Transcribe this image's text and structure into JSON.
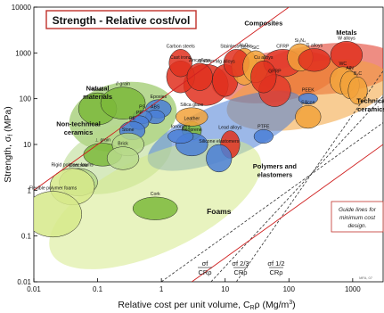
{
  "chart_data": {
    "type": "scatter",
    "title": "Strength - Relative cost/vol",
    "xlabel": "Relative cost per unit volume, C",
    "xlabel_sub": "R",
    "xlabel_rho": "ρ",
    "xlabel_units": "(Mg/m",
    "xlabel_units_sup": "3",
    "xlabel_close": ")",
    "ylabel": "Strength, σ",
    "ylabel_sub": "f",
    "ylabel_units": " (MPa)",
    "xscale": "log",
    "yscale": "log",
    "xlim": [
      0.01,
      3000
    ],
    "ylim": [
      0.01,
      10000
    ],
    "x_ticks": [
      0.01,
      0.1,
      1,
      10,
      100,
      1000
    ],
    "x_tick_labels": [
      "0.01",
      "0.1",
      "1",
      "10",
      "100",
      "1000"
    ],
    "y_ticks": [
      0.01,
      0.1,
      1,
      10,
      100,
      1000,
      10000
    ],
    "y_tick_labels": [
      "0.01",
      "0.1",
      "1",
      "10",
      "100",
      "1000",
      "10000"
    ],
    "grid": false,
    "families": [
      {
        "name": "Composites",
        "color": "#e33b2c",
        "cx": 60,
        "cy": 300,
        "rx_dec": 1.0,
        "ry_dec": 0.55,
        "rot": -8
      },
      {
        "name": "Metals",
        "color": "#e0301e",
        "cx": 400,
        "cy": 450,
        "rx_dec": 1.15,
        "ry_dec": 0.55,
        "rot": -5
      },
      {
        "name": "Natural materials",
        "color": "#7bb83a",
        "cx": 0.25,
        "cy": 40,
        "rx_dec": 0.85,
        "ry_dec": 0.75,
        "rot": -10
      },
      {
        "name": "Non-technical ceramics",
        "color": "#b7d98a",
        "cx": 0.2,
        "cy": 5,
        "rx_dec": 0.9,
        "ry_dec": 0.7,
        "rot": -20
      },
      {
        "name": "Technical ceramics",
        "color": "#f2a23b",
        "cx": 200,
        "cy": 120,
        "rx_dec": 1.3,
        "ry_dec": 0.7,
        "rot": -12
      },
      {
        "name": "Polymers and elastomers",
        "color": "#4a7ed6",
        "cx": 10,
        "cy": 20,
        "rx_dec": 1.3,
        "ry_dec": 0.6,
        "rot": -22
      },
      {
        "name": "Foams",
        "color": "#d6e98a",
        "cx": 0.8,
        "cy": 0.5,
        "rx_dec": 1.8,
        "ry_dec": 1.05,
        "rot": -25
      }
    ],
    "materials": [
      {
        "name": "Al alloys",
        "x": 5,
        "y": 200,
        "rx": 0.35,
        "ry": 0.45,
        "color": "#e0301e"
      },
      {
        "name": "Cast irons",
        "x": 2,
        "y": 300,
        "rx": 0.22,
        "ry": 0.35,
        "color": "#e0301e"
      },
      {
        "name": "Carbon steels",
        "x": 2,
        "y": 600,
        "rx": 0.18,
        "ry": 0.3,
        "color": "#e0301e"
      },
      {
        "name": "Zinc alloys",
        "x": 4,
        "y": 300,
        "rx": 0.2,
        "ry": 0.3,
        "color": "#e0301e"
      },
      {
        "name": "Mg alloys",
        "x": 10,
        "y": 250,
        "rx": 0.2,
        "ry": 0.35,
        "color": "#e0301e"
      },
      {
        "name": "Al₂O₃",
        "x": 20,
        "y": 500,
        "rx": 0.2,
        "ry": 0.4,
        "color": "#f2a23b"
      },
      {
        "name": "Stainless steels",
        "x": 15,
        "y": 600,
        "rx": 0.2,
        "ry": 0.3,
        "color": "#e0301e"
      },
      {
        "name": "SiC",
        "x": 30,
        "y": 500,
        "rx": 0.2,
        "ry": 0.35,
        "color": "#f2a23b"
      },
      {
        "name": "CFRP",
        "x": 80,
        "y": 600,
        "rx": 0.3,
        "ry": 0.3,
        "color": "#e33b2c"
      },
      {
        "name": "Si₃N₄",
        "x": 150,
        "y": 800,
        "rx": 0.2,
        "ry": 0.3,
        "color": "#f2a23b"
      },
      {
        "name": "Ti alloys",
        "x": 250,
        "y": 700,
        "rx": 0.25,
        "ry": 0.25,
        "color": "#e0301e"
      },
      {
        "name": "W alloys",
        "x": 800,
        "y": 900,
        "rx": 0.25,
        "ry": 0.3,
        "color": "#e0301e"
      },
      {
        "name": "WC",
        "x": 700,
        "y": 250,
        "rx": 0.2,
        "ry": 0.3,
        "color": "#f2a23b"
      },
      {
        "name": "AlN",
        "x": 900,
        "y": 200,
        "rx": 0.15,
        "ry": 0.3,
        "color": "#f2a23b"
      },
      {
        "name": "B₄C",
        "x": 1200,
        "y": 150,
        "rx": 0.15,
        "ry": 0.3,
        "color": "#f2a23b"
      },
      {
        "name": "PEEK",
        "x": 200,
        "y": 100,
        "rx": 0.15,
        "ry": 0.12,
        "color": "#4a7ed6"
      },
      {
        "name": "GFRP",
        "x": 60,
        "y": 150,
        "rx": 0.25,
        "ry": 0.35,
        "color": "#e33b2c"
      },
      {
        "name": "Silicon",
        "x": 200,
        "y": 40,
        "rx": 0.2,
        "ry": 0.25,
        "color": "#f2a23b"
      },
      {
        "name": "Cu alloys",
        "x": 40,
        "y": 300,
        "rx": 0.2,
        "ry": 0.35,
        "color": "#e0301e"
      },
      {
        "name": "Lead alloys",
        "x": 12,
        "y": 10,
        "rx": 0.15,
        "ry": 0.3,
        "color": "#e0301e"
      },
      {
        "name": "PTFE",
        "x": 40,
        "y": 15,
        "rx": 0.15,
        "ry": 0.15,
        "color": "#4a7ed6"
      },
      {
        "name": "Leather",
        "x": 3,
        "y": 20,
        "rx": 0.15,
        "ry": 0.2,
        "color": "#7bb83a"
      },
      {
        "name": "Silicone elastomers",
        "x": 8,
        "y": 5,
        "rx": 0.2,
        "ry": 0.3,
        "color": "#4a7ed6"
      },
      {
        "name": "Neoprene",
        "x": 3,
        "y": 10,
        "rx": 0.25,
        "ry": 0.25,
        "color": "#4a7ed6"
      },
      {
        "name": "Epoxies",
        "x": 0.9,
        "y": 60,
        "rx": 0.2,
        "ry": 0.2,
        "color": "#4a7ed6"
      },
      {
        "name": "ABS",
        "x": 0.8,
        "y": 40,
        "rx": 0.15,
        "ry": 0.15,
        "color": "#4a7ed6"
      },
      {
        "name": "PS",
        "x": 0.5,
        "y": 40,
        "rx": 0.15,
        "ry": 0.15,
        "color": "#4a7ed6"
      },
      {
        "name": "PP",
        "x": 0.45,
        "y": 30,
        "rx": 0.15,
        "ry": 0.15,
        "color": "#4a7ed6"
      },
      {
        "name": "PE",
        "x": 0.35,
        "y": 20,
        "rx": 0.2,
        "ry": 0.2,
        "color": "#4a7ed6"
      },
      {
        "name": "Silica glass",
        "x": 3,
        "y": 40,
        "rx": 0.25,
        "ry": 0.2,
        "color": "#f2a23b"
      },
      {
        "name": "Ionomers",
        "x": 2,
        "y": 15,
        "rx": 0.2,
        "ry": 0.15,
        "color": "#4a7ed6"
      },
      {
        "name": "Wood",
        "x": 0.1,
        "y": 60,
        "rx": 0.3,
        "ry": 0.35,
        "color": "#7bb83a"
      },
      {
        "name": "// grain",
        "x": 0.25,
        "y": 80,
        "rx": 0.35,
        "ry": 0.35,
        "color": "#7bb83a"
      },
      {
        "name": "⊥ grain",
        "x": 0.12,
        "y": 6,
        "rx": 0.3,
        "ry": 0.25,
        "color": "#7bb83a"
      },
      {
        "name": "Stone",
        "x": 0.3,
        "y": 10,
        "rx": 0.25,
        "ry": 0.25,
        "color": "#b7d98a"
      },
      {
        "name": "Brick",
        "x": 0.25,
        "y": 5,
        "rx": 0.25,
        "ry": 0.25,
        "color": "#b7d98a"
      },
      {
        "name": "Concrete",
        "x": 0.05,
        "y": 1.5,
        "rx": 0.3,
        "ry": 0.3,
        "color": "#b7d98a"
      },
      {
        "name": "Rigid polymer foams",
        "x": 0.04,
        "y": 1.2,
        "rx": 0.35,
        "ry": 0.4,
        "color": "#d6e98a"
      },
      {
        "name": "Flexible polymer foams",
        "x": 0.02,
        "y": 0.3,
        "rx": 0.45,
        "ry": 0.5,
        "color": "#d6e98a"
      },
      {
        "name": "Cork",
        "x": 0.8,
        "y": 0.4,
        "rx": 0.35,
        "ry": 0.25,
        "color": "#7bb83a"
      }
    ],
    "guide_note": "Guide lines for minimum cost design",
    "guide_lines": [
      {
        "label_num": "σ",
        "label_num_sub": "f",
        "label_den": "C",
        "label_den_sub": "Rρ",
        "slope": 1
      },
      {
        "label_num": "σ",
        "label_num_sub": "f",
        "label_num_sup": "2/3",
        "label_den": "C",
        "label_den_sub": "Rρ",
        "slope": 1.5
      },
      {
        "label_num": "σ",
        "label_num_sub": "f",
        "label_num_sup": "1/2",
        "label_den": "C",
        "label_den_sub": "Rρ",
        "slope": 2
      }
    ],
    "watermark": "MFA, 07"
  }
}
